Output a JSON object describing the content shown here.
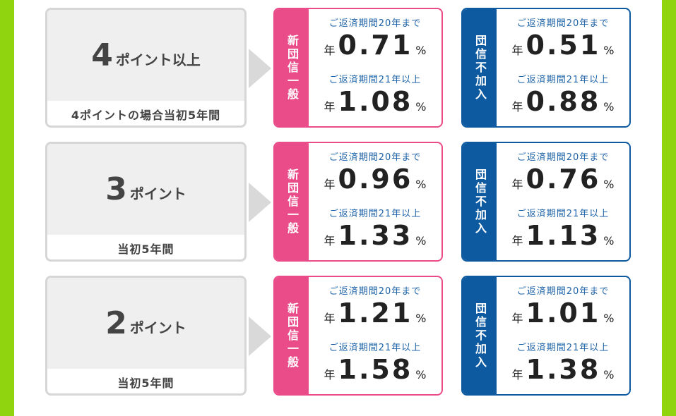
{
  "colors": {
    "green_border": "#8fd40e",
    "pink": "#ea4c89",
    "blue": "#0d5aa0",
    "term_text": "#1f64a8",
    "gray_box": "#efefef"
  },
  "labels": {
    "shindan_ippan": "新団信一般",
    "dantai_fukanyu": "団信不加入",
    "term_20": "ご返済期間20年まで",
    "term_21": "ご返済期間21年以上",
    "year": "年",
    "percent": "%"
  },
  "rows": [
    {
      "points_num": "4",
      "points_label": "ポイント以上",
      "note": "4ポイントの場合当初5年間",
      "pink": {
        "rate_20": "0.71",
        "rate_21": "1.08"
      },
      "blue": {
        "rate_20": "0.51",
        "rate_21": "0.88"
      }
    },
    {
      "points_num": "3",
      "points_label": "ポイント",
      "note": "当初5年間",
      "pink": {
        "rate_20": "0.96",
        "rate_21": "1.33"
      },
      "blue": {
        "rate_20": "0.76",
        "rate_21": "1.13"
      }
    },
    {
      "points_num": "2",
      "points_label": "ポイント",
      "note": "当初5年間",
      "pink": {
        "rate_20": "1.21",
        "rate_21": "1.58"
      },
      "blue": {
        "rate_20": "1.01",
        "rate_21": "1.38"
      }
    }
  ]
}
